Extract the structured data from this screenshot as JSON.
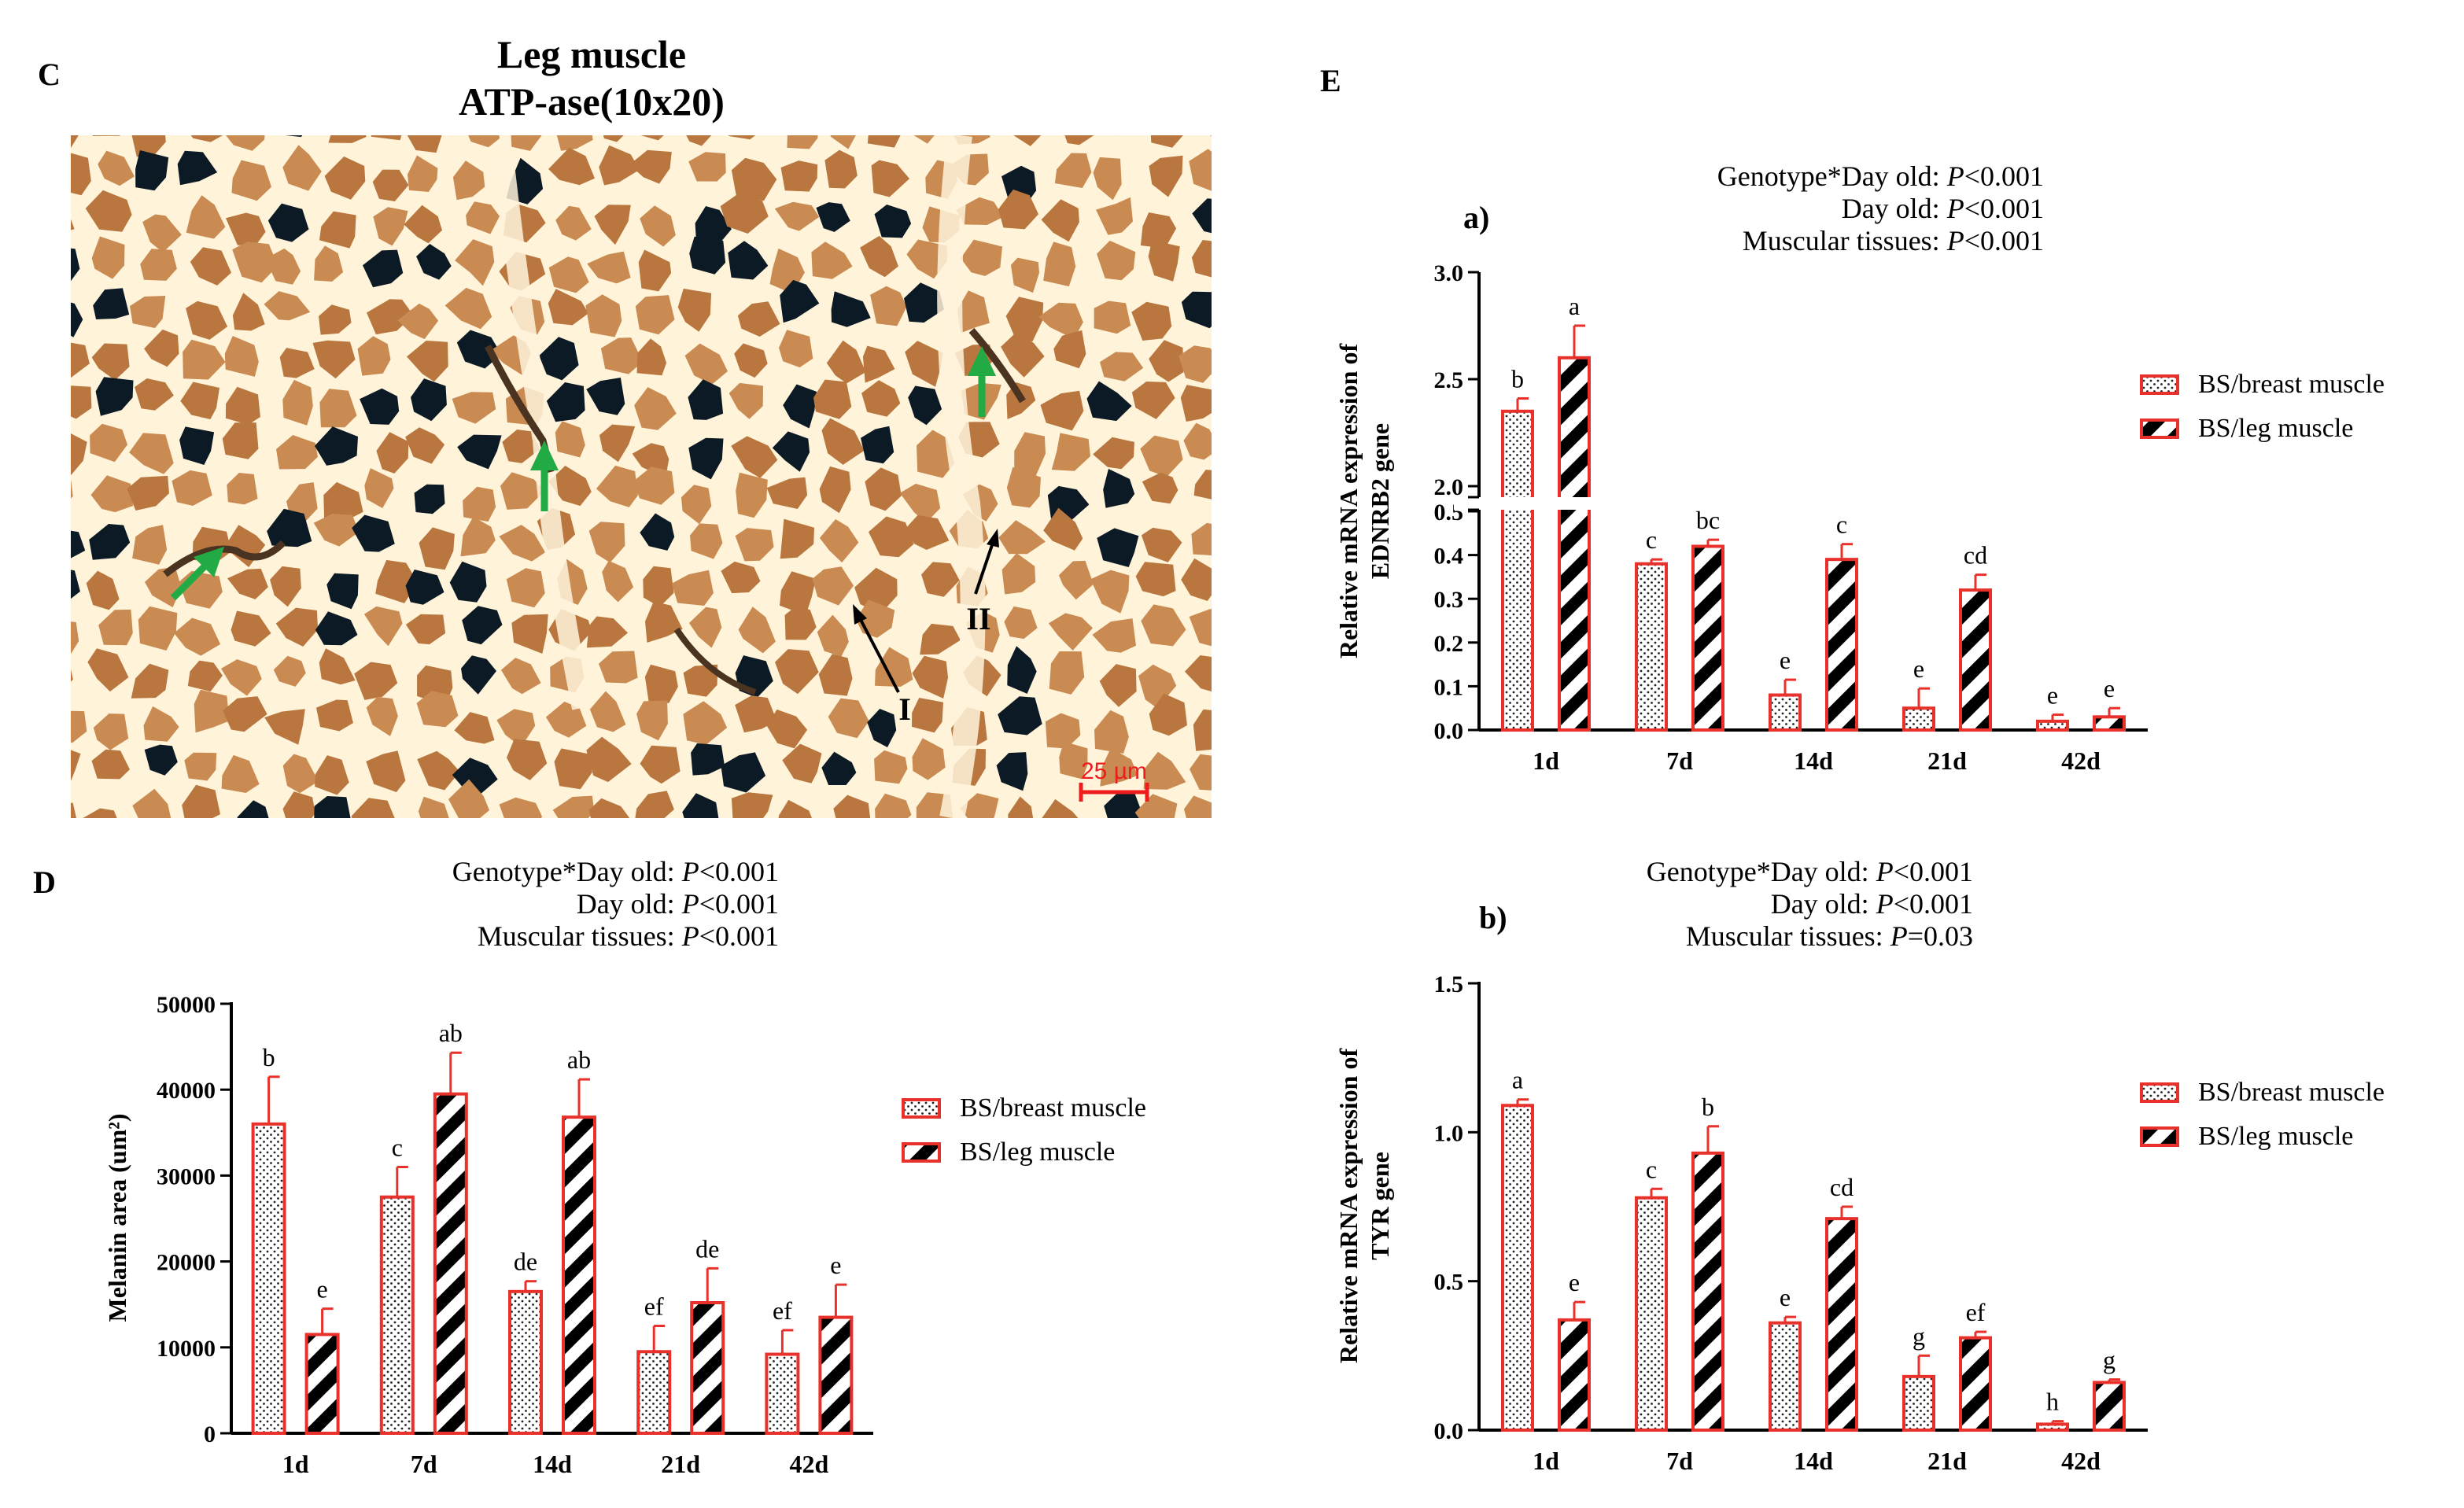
{
  "colors": {
    "bar_stroke": "#e8312a",
    "axis": "#000000",
    "arrow_green": "#22aa44",
    "arrow_black": "#000000",
    "scale_red": "#ee1c1c",
    "micro_bg": "#c98b52",
    "micro_fiber": "#b9773f",
    "micro_gap": "#fff3da",
    "micro_dark": "#0c1a26"
  },
  "panel_c": {
    "letter": "C",
    "title_line1": "Leg muscle",
    "title_line2": "ATP-ase(10x20)",
    "scale_label": "25 µm",
    "fiber_label_1": "I",
    "fiber_label_2": "II"
  },
  "panel_d": {
    "letter": "D",
    "stats": [
      "Genotype*Day old: ",
      "P",
      "<0.001",
      "Day old: ",
      "P",
      "<0.001",
      "Muscular tissues: ",
      "P",
      "<0.001"
    ]
  },
  "panel_e": {
    "letter": "E",
    "sub_a": "a)",
    "sub_b": "b)",
    "stats_a": [
      "Genotype*Day old: ",
      "P",
      "<0.001",
      "Day old: ",
      "P",
      "<0.001",
      "Muscular tissues: ",
      "P",
      "<0.001"
    ],
    "stats_b": [
      "Genotype*Day old: ",
      "P",
      "<0.001",
      "Day old: ",
      "P",
      "<0.001",
      "Muscular tissues: ",
      "P",
      "=0.03"
    ]
  },
  "chart_data": [
    {
      "id": "melanin",
      "type": "bar",
      "title": "",
      "ylabel": "Melanin area (um²)",
      "ylim": [
        0,
        50000
      ],
      "yticks": [
        0,
        10000,
        20000,
        30000,
        40000,
        50000
      ],
      "ytick_labels": [
        "0",
        "10000",
        "20000",
        "30000",
        "40000",
        "50000"
      ],
      "categories": [
        "1d",
        "7d",
        "14d",
        "21d",
        "42d"
      ],
      "series": [
        {
          "name": "BS/breast muscle",
          "pattern": "dots",
          "values": [
            36000,
            27500,
            16500,
            9500,
            9200
          ],
          "errors": [
            5500,
            3500,
            1200,
            3000,
            2800
          ],
          "letters": [
            "b",
            "c",
            "de",
            "ef",
            "ef"
          ]
        },
        {
          "name": "BS/leg muscle",
          "pattern": "stripes",
          "values": [
            11500,
            39500,
            36800,
            15200,
            13500
          ],
          "errors": [
            3000,
            4800,
            4400,
            4000,
            3800
          ],
          "letters": [
            "e",
            "ab",
            "ab",
            "de",
            "e"
          ]
        }
      ]
    },
    {
      "id": "ednrb2",
      "type": "bar",
      "title": "",
      "ylabel": "Relative mRNA expression of EDNRB2 gene",
      "axis_break": true,
      "segments": [
        [
          0,
          0.5
        ],
        [
          2.0,
          3.0
        ]
      ],
      "yticks": [
        0,
        0.1,
        0.2,
        0.3,
        0.4,
        0.5,
        2.0,
        2.5,
        3.0
      ],
      "ytick_labels": [
        "0.0",
        "0.1",
        "0.2",
        "0.3",
        "0.4",
        "0.5",
        "2.0",
        "2.5",
        "3.0"
      ],
      "categories": [
        "1d",
        "7d",
        "14d",
        "21d",
        "42d"
      ],
      "series": [
        {
          "name": "BS/breast muscle",
          "pattern": "dots",
          "values": [
            2.35,
            0.38,
            0.08,
            0.05,
            0.02
          ],
          "errors": [
            0.06,
            0.01,
            0.035,
            0.045,
            0.015
          ],
          "letters": [
            "b",
            "c",
            "e",
            "e",
            "e"
          ]
        },
        {
          "name": "BS/leg muscle",
          "pattern": "stripes",
          "values": [
            2.6,
            0.42,
            0.39,
            0.32,
            0.03
          ],
          "errors": [
            0.15,
            0.015,
            0.035,
            0.035,
            0.02
          ],
          "letters": [
            "a",
            "bc",
            "c",
            "cd",
            "e"
          ]
        }
      ]
    },
    {
      "id": "tyr",
      "type": "bar",
      "title": "",
      "ylabel": "Relative mRNA expression of TYR gene",
      "ylim": [
        0,
        1.5
      ],
      "yticks": [
        0,
        0.5,
        1.0,
        1.5
      ],
      "ytick_labels": [
        "0.0",
        "0.5",
        "1.0",
        "1.5"
      ],
      "categories": [
        "1d",
        "7d",
        "14d",
        "21d",
        "42d"
      ],
      "series": [
        {
          "name": "BS/breast muscle",
          "pattern": "dots",
          "values": [
            1.09,
            0.78,
            0.36,
            0.18,
            0.02
          ],
          "errors": [
            0.02,
            0.03,
            0.02,
            0.07,
            0.01
          ],
          "letters": [
            "a",
            "c",
            "e",
            "g",
            "h"
          ]
        },
        {
          "name": "BS/leg muscle",
          "pattern": "stripes",
          "values": [
            0.37,
            0.93,
            0.71,
            0.31,
            0.16
          ],
          "errors": [
            0.06,
            0.09,
            0.04,
            0.02,
            0.01
          ],
          "letters": [
            "e",
            "b",
            "cd",
            "ef",
            "g"
          ]
        }
      ]
    }
  ]
}
